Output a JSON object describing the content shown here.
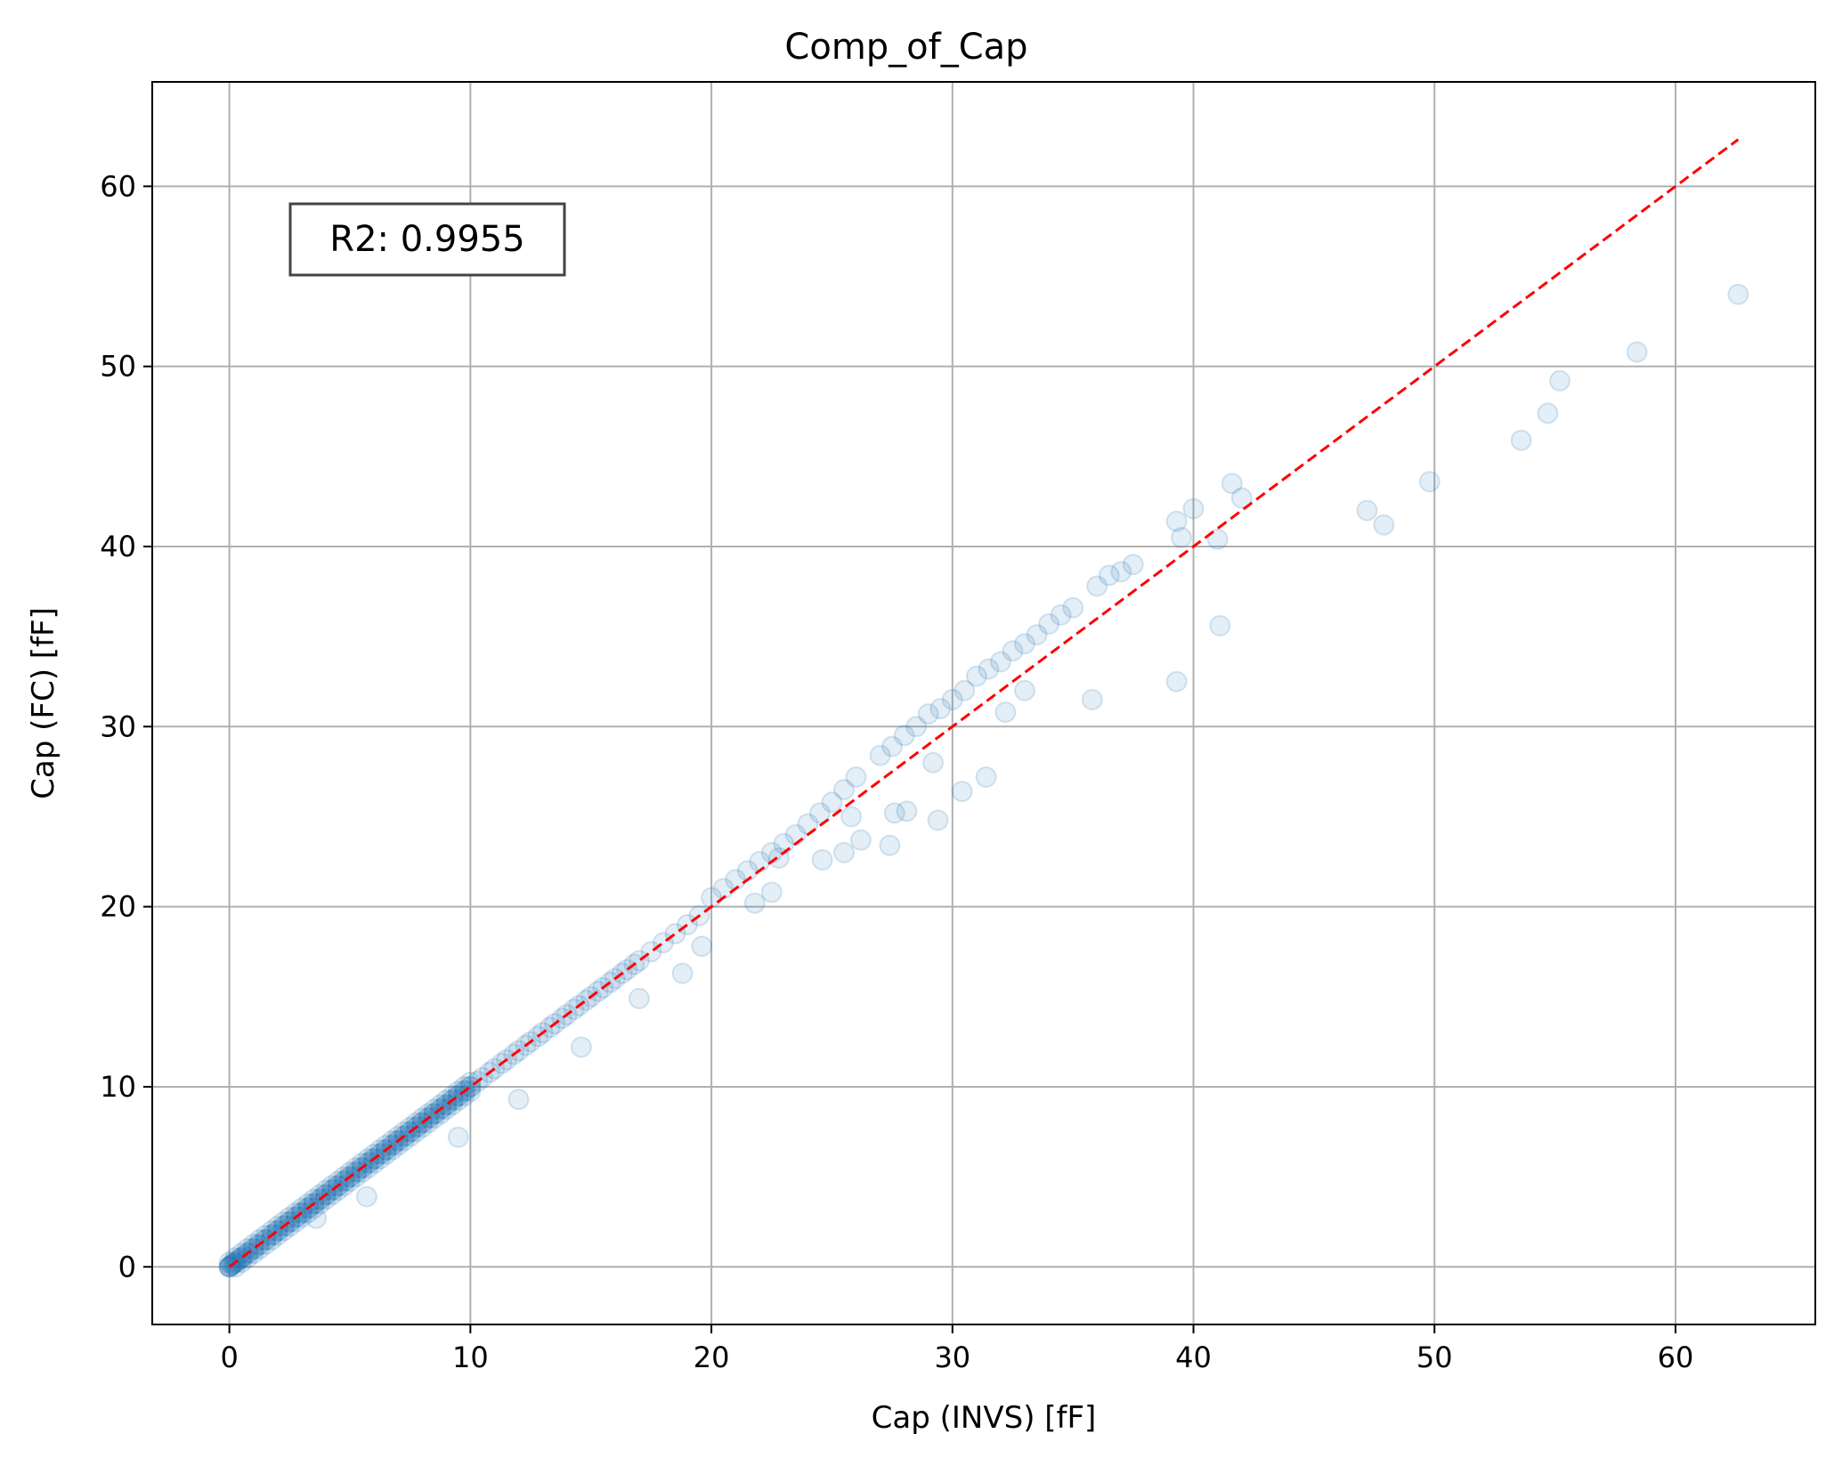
{
  "chart_data": {
    "type": "scatter",
    "title": "Comp_of_Cap",
    "xlabel": "Cap (INVS) [fF]",
    "ylabel": "Cap (FC) [fF]",
    "xlim": [
      -3.2,
      65.8
    ],
    "ylim": [
      -3.2,
      65.8
    ],
    "xticks": [
      0,
      10,
      20,
      30,
      40,
      50,
      60
    ],
    "yticks": [
      0,
      10,
      20,
      30,
      40,
      50,
      60
    ],
    "xtick_labels": [
      "0",
      "10",
      "20",
      "30",
      "40",
      "50",
      "60"
    ],
    "ytick_labels": [
      "0",
      "10",
      "20",
      "30",
      "40",
      "50",
      "60"
    ],
    "grid": true,
    "annotation": "R2: 0.9955",
    "marker_color": "#1f77b4",
    "marker_alpha": 0.12,
    "reference_line": {
      "x": [
        0,
        62.6
      ],
      "y": [
        0,
        62.6
      ],
      "color": "#ff0000",
      "style": "dashed"
    },
    "series": [
      {
        "x": [
          0,
          0.05,
          0.1,
          0.15,
          0.2,
          0.3,
          0.4,
          0.5,
          0.6,
          0.8,
          1.0,
          1.2,
          1.5,
          1.8,
          2.0,
          2.3,
          2.5,
          2.8,
          3.0,
          3.3,
          3.5,
          3.8,
          4.0,
          4.3,
          4.5,
          4.8,
          5.0,
          5.3,
          5.5,
          5.8,
          6.0,
          6.3,
          6.5,
          6.8,
          7.0,
          7.3,
          7.5,
          7.8,
          8.0,
          8.3,
          8.5,
          8.8,
          9.0,
          9.3,
          9.5,
          9.8,
          10.0,
          10.3,
          10.5,
          10.8,
          11.0,
          11.3,
          11.5,
          11.8,
          12.0,
          12.3,
          12.5,
          12.8,
          13.0,
          13.3,
          13.5,
          13.8,
          14.0,
          14.3,
          14.5,
          14.8,
          15.0,
          15.3,
          15.5,
          15.8,
          16.0,
          16.3,
          16.5,
          16.8,
          17.0,
          17.5,
          18.0,
          18.5,
          19.0,
          19.5,
          20.0,
          20.5,
          21.0,
          21.5,
          22.0,
          22.5,
          23.0,
          23.5,
          24.0,
          24.5,
          25.0,
          25.5,
          26.0,
          27.0,
          27.5,
          28.0,
          28.5,
          29.0,
          29.5,
          30.0,
          30.5,
          31.0,
          31.5,
          32.0,
          32.5,
          33.0,
          33.5,
          34.0,
          34.5,
          35.0,
          36.0,
          36.5,
          37.0,
          37.5,
          39.3,
          39.5,
          40.0,
          41.0,
          41.6,
          42.0,
          47.2,
          47.9,
          49.8,
          53.6,
          54.7,
          55.2,
          58.4,
          62.6,
          5.7,
          3.6,
          9.5,
          12.0,
          14.6,
          17.0,
          18.8,
          19.6,
          21.8,
          22.5,
          24.6,
          25.5,
          26.2,
          27.4,
          28.1,
          29.4,
          30.4,
          31.4,
          32.2,
          33.0,
          35.8,
          39.3,
          41.1,
          27.6,
          29.2,
          22.8,
          25.8
        ],
        "y": [
          0,
          0.05,
          0.1,
          0.15,
          0.2,
          0.3,
          0.4,
          0.5,
          0.6,
          0.8,
          1.0,
          1.2,
          1.5,
          1.8,
          2.0,
          2.3,
          2.5,
          2.8,
          3.0,
          3.3,
          3.5,
          3.8,
          4.0,
          4.3,
          4.5,
          4.8,
          5.0,
          5.3,
          5.5,
          5.8,
          6.0,
          6.3,
          6.5,
          6.8,
          7.0,
          7.3,
          7.5,
          7.8,
          8.0,
          8.3,
          8.5,
          8.8,
          9.0,
          9.3,
          9.5,
          9.8,
          10.0,
          10.3,
          10.5,
          10.8,
          11.0,
          11.3,
          11.5,
          11.8,
          12.0,
          12.3,
          12.5,
          12.8,
          13.0,
          13.3,
          13.5,
          13.8,
          14.0,
          14.3,
          14.5,
          14.8,
          15.0,
          15.3,
          15.5,
          15.8,
          16.0,
          16.3,
          16.5,
          16.8,
          17.0,
          17.5,
          18.0,
          18.5,
          19.0,
          19.5,
          20.5,
          21.0,
          21.5,
          22.0,
          22.5,
          23.0,
          23.5,
          24.0,
          24.6,
          25.2,
          25.8,
          26.5,
          27.2,
          28.4,
          28.9,
          29.5,
          30.0,
          30.7,
          31.0,
          31.5,
          32.0,
          32.8,
          33.2,
          33.6,
          34.2,
          34.6,
          35.1,
          35.7,
          36.2,
          36.6,
          37.8,
          38.4,
          38.6,
          39.0,
          41.4,
          40.5,
          42.1,
          40.4,
          43.5,
          42.7,
          42.0,
          41.2,
          43.6,
          45.9,
          47.4,
          49.2,
          50.8,
          54.0,
          3.9,
          2.7,
          7.2,
          9.3,
          12.2,
          14.9,
          16.3,
          17.8,
          20.2,
          20.8,
          22.6,
          23.0,
          23.7,
          23.4,
          25.3,
          24.8,
          26.4,
          27.2,
          30.8,
          32.0,
          31.5,
          32.5,
          35.6,
          25.2,
          28.0,
          22.7,
          25.0
        ]
      }
    ]
  }
}
